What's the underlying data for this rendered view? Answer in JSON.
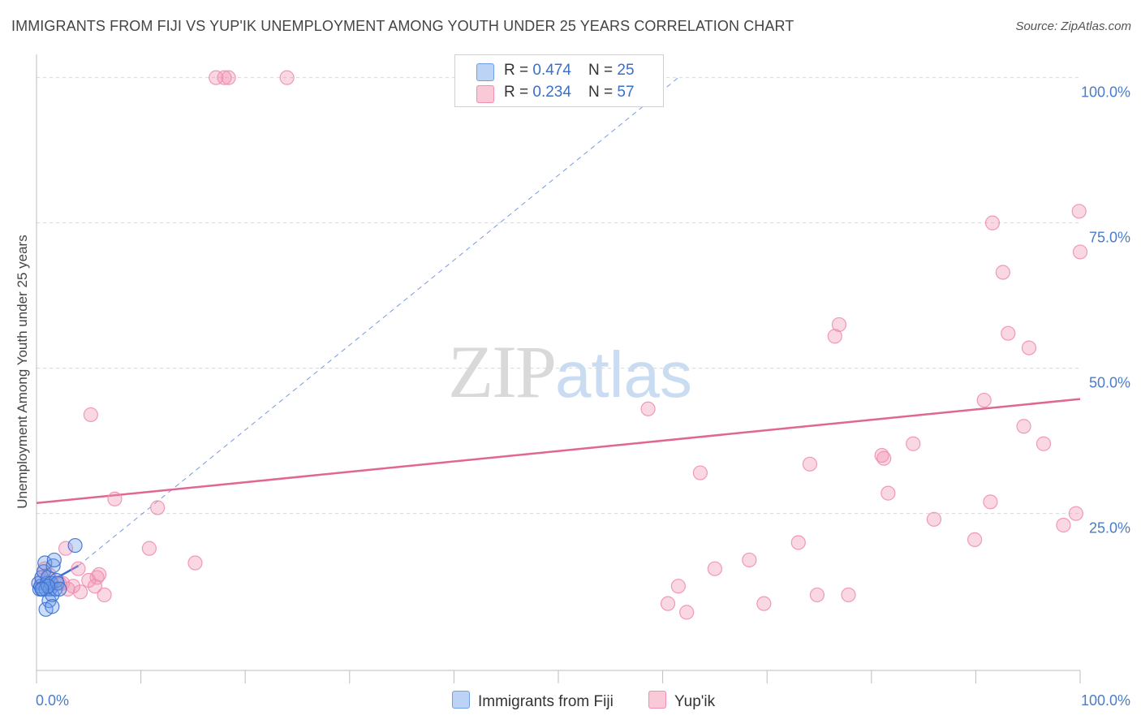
{
  "header": {
    "title": "IMMIGRANTS FROM FIJI VS YUP'IK UNEMPLOYMENT AMONG YOUTH UNDER 25 YEARS CORRELATION CHART",
    "source": "Source: ZipAtlas.com"
  },
  "watermark": {
    "zip": "ZIP",
    "atlas": "atlas"
  },
  "legend": {
    "fiji": {
      "r_label": "R = ",
      "r_value": "0.474",
      "n_label": "N = ",
      "n_value": "25"
    },
    "yupik": {
      "r_label": "R = ",
      "r_value": "0.234",
      "n_label": "N = ",
      "n_value": "57"
    }
  },
  "chart_data": {
    "type": "scatter",
    "title": "IMMIGRANTS FROM FIJI VS YUP'IK UNEMPLOYMENT AMONG YOUTH UNDER 25 YEARS CORRELATION CHART",
    "xlabel": "",
    "ylabel": "Unemployment Among Youth under 25 years",
    "xlim": [
      0,
      100
    ],
    "ylim": [
      -2,
      104
    ],
    "x_tick_labels": [
      "0.0%",
      "100.0%"
    ],
    "y_ticks": [
      25,
      50,
      75,
      100
    ],
    "y_tick_labels": [
      "25.0%",
      "50.0%",
      "75.0%",
      "100.0%"
    ],
    "grid": true,
    "colors": {
      "fiji": "#6f9ee6",
      "yupik": "#f08fb0",
      "fiji_line": "#3b6fd4",
      "yupik_line": "#e06693"
    },
    "series": [
      {
        "name": "Immigrants from Fiji",
        "x": [
          0.2,
          0.3,
          0.4,
          0.5,
          0.6,
          0.7,
          0.8,
          0.9,
          1.0,
          1.1,
          1.2,
          1.3,
          1.4,
          1.5,
          1.6,
          1.7,
          1.8,
          1.9,
          2.0,
          2.2,
          0.9,
          1.5,
          1.1,
          0.5,
          3.7
        ],
        "y": [
          13,
          12,
          12.5,
          14,
          12,
          15,
          16.5,
          12,
          13,
          14,
          10,
          12,
          13,
          11,
          16,
          17,
          12,
          13.5,
          13,
          12,
          8.5,
          9,
          12.5,
          12,
          19.5
        ],
        "trend": {
          "x": [
            0,
            4
          ],
          "y": [
            12,
            16
          ],
          "extended_x": [
            4,
            61.5
          ],
          "extended_y": [
            16,
            100
          ]
        }
      },
      {
        "name": "Yup'ik",
        "x": [
          0.5,
          0.8,
          1.2,
          1.5,
          2.2,
          2.8,
          3.5,
          4.0,
          5.0,
          5.2,
          5.6,
          5.8,
          6.5,
          7.5,
          10.8,
          11.6,
          15.2,
          17.2,
          18.0,
          18.4,
          24.0,
          58.6,
          60.5,
          61.5,
          62.3,
          63.6,
          65.0,
          68.3,
          69.7,
          73.0,
          74.1,
          74.8,
          76.5,
          76.9,
          77.8,
          81.0,
          81.2,
          81.6,
          84.0,
          86.0,
          89.9,
          90.8,
          91.4,
          91.6,
          92.6,
          93.1,
          94.6,
          95.1,
          96.5,
          98.4,
          99.6,
          99.9,
          100.0,
          2.5,
          3.0,
          4.2,
          6.0
        ],
        "y": [
          13.5,
          15.5,
          14.5,
          12.5,
          13.0,
          19.0,
          12.5,
          15.5,
          13.5,
          42.0,
          12.5,
          14.0,
          11.0,
          27.5,
          19.0,
          26.0,
          16.5,
          100,
          100,
          100,
          100,
          43.0,
          9.5,
          12.5,
          8.0,
          32.0,
          15.5,
          17.0,
          9.5,
          20.0,
          33.5,
          11.0,
          55.5,
          57.5,
          11.0,
          35.0,
          34.5,
          28.5,
          37.0,
          24.0,
          20.5,
          44.5,
          27.0,
          75.0,
          66.5,
          56.0,
          40.0,
          53.5,
          37.0,
          23.0,
          25.0,
          77.0,
          70.0,
          13.0,
          12.0,
          11.5,
          14.5
        ],
        "trend": {
          "x": [
            0,
            100
          ],
          "y": [
            26.8,
            44.7
          ]
        }
      }
    ],
    "legend_position": "top-center"
  }
}
